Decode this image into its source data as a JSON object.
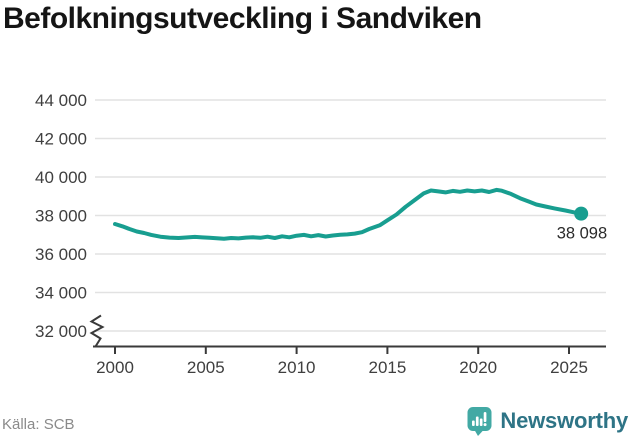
{
  "title": "Befolkningsutveckling i Sandviken",
  "source": "Källa: SCB",
  "logo": {
    "text": "Newsworthy",
    "icon": "speech-bubble-bar-chart-exclamation"
  },
  "chart_data": {
    "type": "line",
    "title": "Befolkningsutveckling i Sandviken",
    "xlabel": "",
    "ylabel": "",
    "axis_break": true,
    "grid": "horizontal",
    "legend": "none",
    "ylim": [
      32000,
      44000
    ],
    "xlim": [
      1999,
      2027
    ],
    "y_ticks": [
      {
        "value": 44000,
        "label": "44 000"
      },
      {
        "value": 42000,
        "label": "42 000"
      },
      {
        "value": 40000,
        "label": "40 000"
      },
      {
        "value": 38000,
        "label": "38 000"
      },
      {
        "value": 36000,
        "label": "36 000"
      },
      {
        "value": 34000,
        "label": "34 000"
      },
      {
        "value": 32000,
        "label": "32 000"
      }
    ],
    "x_ticks": [
      {
        "year": 2000,
        "label": "2000"
      },
      {
        "year": 2005,
        "label": "2005"
      },
      {
        "year": 2010,
        "label": "2010"
      },
      {
        "year": 2015,
        "label": "2015"
      },
      {
        "year": 2020,
        "label": "2020"
      },
      {
        "year": 2025,
        "label": "2025"
      }
    ],
    "points": [
      [
        2000.0,
        37560
      ],
      [
        2000.4,
        37440
      ],
      [
        2000.8,
        37300
      ],
      [
        2001.2,
        37170
      ],
      [
        2001.6,
        37090
      ],
      [
        2002.0,
        36990
      ],
      [
        2002.5,
        36900
      ],
      [
        2003.0,
        36850
      ],
      [
        2003.5,
        36830
      ],
      [
        2004.0,
        36860
      ],
      [
        2004.4,
        36890
      ],
      [
        2004.8,
        36860
      ],
      [
        2005.2,
        36840
      ],
      [
        2005.6,
        36820
      ],
      [
        2006.0,
        36790
      ],
      [
        2006.4,
        36830
      ],
      [
        2006.8,
        36810
      ],
      [
        2007.2,
        36850
      ],
      [
        2007.6,
        36870
      ],
      [
        2008.0,
        36840
      ],
      [
        2008.4,
        36900
      ],
      [
        2008.8,
        36830
      ],
      [
        2009.2,
        36920
      ],
      [
        2009.6,
        36870
      ],
      [
        2010.0,
        36950
      ],
      [
        2010.4,
        36990
      ],
      [
        2010.8,
        36920
      ],
      [
        2011.2,
        36980
      ],
      [
        2011.6,
        36910
      ],
      [
        2012.0,
        36960
      ],
      [
        2012.4,
        37000
      ],
      [
        2012.8,
        37020
      ],
      [
        2013.2,
        37060
      ],
      [
        2013.6,
        37130
      ],
      [
        2014.0,
        37300
      ],
      [
        2014.6,
        37500
      ],
      [
        2015.0,
        37750
      ],
      [
        2015.5,
        38050
      ],
      [
        2016.0,
        38450
      ],
      [
        2016.5,
        38800
      ],
      [
        2017.0,
        39150
      ],
      [
        2017.4,
        39300
      ],
      [
        2017.8,
        39250
      ],
      [
        2018.2,
        39200
      ],
      [
        2018.6,
        39280
      ],
      [
        2019.0,
        39230
      ],
      [
        2019.4,
        39300
      ],
      [
        2019.8,
        39250
      ],
      [
        2020.2,
        39300
      ],
      [
        2020.6,
        39220
      ],
      [
        2021.0,
        39330
      ],
      [
        2021.3,
        39290
      ],
      [
        2021.8,
        39120
      ],
      [
        2022.3,
        38900
      ],
      [
        2022.8,
        38720
      ],
      [
        2023.2,
        38570
      ],
      [
        2023.7,
        38470
      ],
      [
        2024.2,
        38370
      ],
      [
        2024.8,
        38260
      ],
      [
        2025.3,
        38160
      ],
      [
        2025.67,
        38098
      ]
    ],
    "last_point": {
      "year": 2025.67,
      "value": 38098,
      "label": "38 098"
    },
    "colors": {
      "line": "#189e90",
      "grid": "#e2e2e2",
      "axis": "#3a3a3a",
      "tick_text": "#3f3f3f",
      "end_label_text": "#2b2b2b"
    }
  }
}
